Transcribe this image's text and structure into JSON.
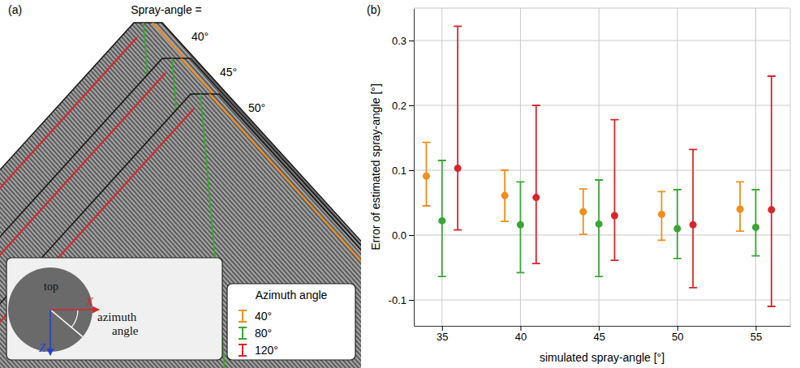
{
  "panel_a": {
    "label": "(a)",
    "spray_angle_title": "Spray-angle =",
    "spray_angles": [
      "40°",
      "45°",
      "50°"
    ],
    "inset": {
      "top": "top",
      "x_axis": "X",
      "z_axis": "Z",
      "angle": "azimuth angle"
    },
    "legend_title": "Azimuth angle"
  },
  "chart_data": {
    "type": "scatter",
    "label": "(b)",
    "x_label": "simulated spray-angle [°]",
    "y_label": "Error of estimated spray-angle [°]",
    "xlim": [
      33.2,
      57.2
    ],
    "xticks": [
      35,
      40,
      45,
      50,
      55
    ],
    "ylim": [
      -0.14,
      0.35
    ],
    "yticks": [
      -0.1,
      {
        "value": 0,
        "label": "0.0"
      },
      0.1,
      0.2,
      0.3
    ],
    "grid": true,
    "marker": "circle",
    "series": [
      {
        "name": "40°",
        "color": "#f28e1c",
        "x": [
          34,
          39,
          44,
          49,
          54
        ],
        "values": [
          0.091,
          0.061,
          0.036,
          0.032,
          0.04
        ],
        "lower": [
          0.045,
          0.021,
          0.001,
          -0.008,
          0.006
        ],
        "upper": [
          0.143,
          0.1,
          0.071,
          0.067,
          0.082
        ]
      },
      {
        "name": "80°",
        "color": "#3aa635",
        "x": [
          35,
          40,
          45,
          50,
          55
        ],
        "values": [
          0.022,
          0.016,
          0.017,
          0.01,
          0.012
        ],
        "lower": [
          -0.064,
          -0.058,
          -0.064,
          -0.036,
          -0.032
        ],
        "upper": [
          0.115,
          0.082,
          0.085,
          0.07,
          0.07
        ]
      },
      {
        "name": "120°",
        "color": "#d7262b",
        "x": [
          36,
          41,
          46,
          51,
          56
        ],
        "values": [
          0.103,
          0.058,
          0.03,
          0.016,
          0.039
        ],
        "lower": [
          0.008,
          -0.044,
          -0.039,
          -0.081,
          -0.11
        ],
        "upper": [
          0.322,
          0.2,
          0.178,
          0.132,
          0.245
        ]
      }
    ]
  }
}
